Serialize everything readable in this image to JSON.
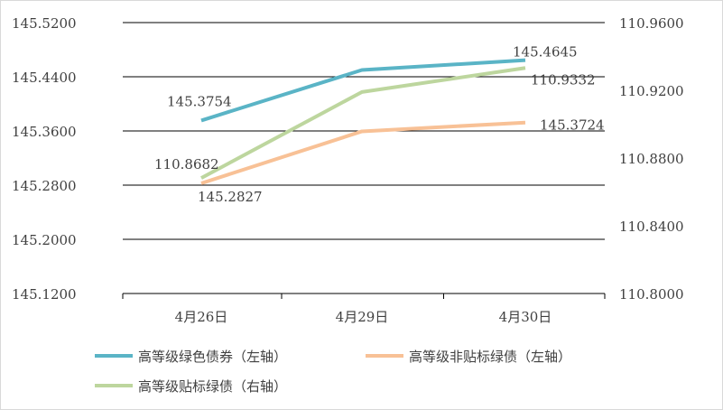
{
  "chart_data": {
    "type": "line",
    "categories": [
      "4月26日",
      "4月29日",
      "4月30日"
    ],
    "left_axis": {
      "ylim": [
        145.12,
        145.52
      ],
      "ticks": [
        "145.1200",
        "145.2000",
        "145.2800",
        "145.3600",
        "145.4400",
        "145.5200"
      ]
    },
    "right_axis": {
      "ylim": [
        110.8,
        110.96
      ],
      "ticks": [
        "110.8000",
        "110.8400",
        "110.8800",
        "110.9200",
        "110.9600"
      ]
    },
    "grid": true,
    "legend_position": "bottom",
    "series": [
      {
        "name": "高等级绿色债券（左轴）",
        "axis": "left",
        "color": "#5ab4c6",
        "values": [
          145.3754,
          145.45,
          145.4645
        ],
        "labels": [
          "145.3754",
          "",
          "145.4645"
        ]
      },
      {
        "name": "高等级非贴标绿债（左轴）",
        "axis": "left",
        "color": "#f8c196",
        "values": [
          145.2827,
          145.3594,
          145.3724
        ],
        "labels": [
          "145.2827",
          "",
          "145.3724"
        ]
      },
      {
        "name": "高等级贴标绿债（右轴）",
        "axis": "right",
        "color": "#bdd69e",
        "values": [
          110.8682,
          110.919,
          110.9332
        ],
        "labels": [
          "110.8682",
          "",
          "110.9332"
        ]
      }
    ]
  }
}
